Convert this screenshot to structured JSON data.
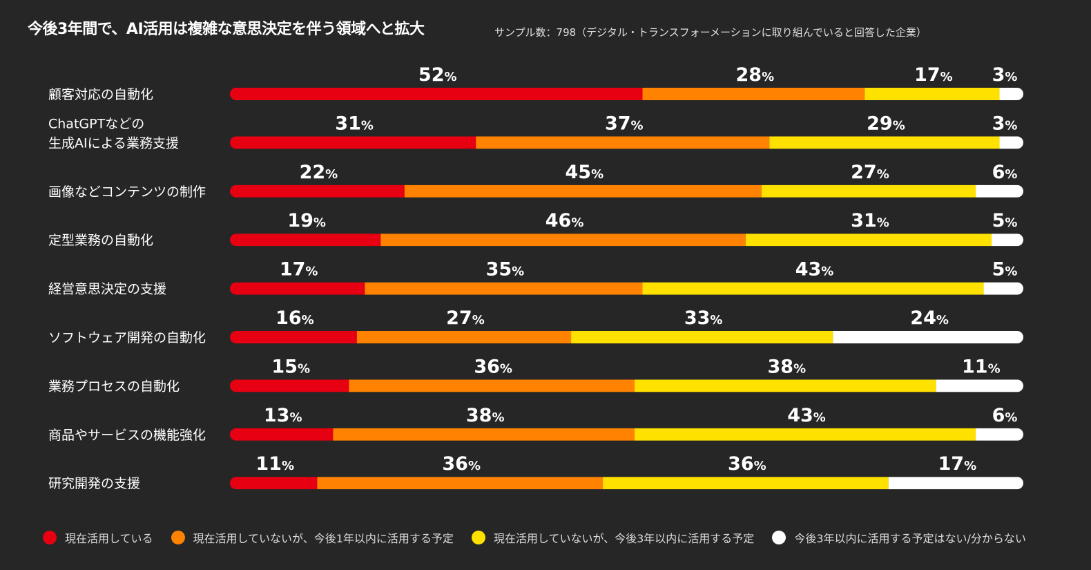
{
  "title": "今後3年間で、AI活用は複雑な意思決定を伴う領域へと拡大",
  "subtitle": "サンプル数：798（デジタル・トランスフォーメーションに取り組んでいると回答した企業）",
  "colors": [
    "#e60012",
    "#ff8200",
    "#ffe100",
    "#ffffff"
  ],
  "chart_data": {
    "type": "bar",
    "orientation": "horizontal",
    "stacked": true,
    "unit": "%",
    "categories": [
      "顧客対応の自動化",
      "ChatGPTなどの\n生成AIによる業務支援",
      "画像などコンテンツの制作",
      "定型業務の自動化",
      "経営意思決定の支援",
      "ソフトウェア開発の自動化",
      "業務プロセスの自動化",
      "商品やサービスの機能強化",
      "研究開発の支援"
    ],
    "series": [
      {
        "name": "現在活用している",
        "values": [
          52,
          31,
          22,
          19,
          17,
          16,
          15,
          13,
          11
        ]
      },
      {
        "name": "現在活用していないが、今後1年以内に活用する予定",
        "values": [
          28,
          37,
          45,
          46,
          35,
          27,
          36,
          38,
          36
        ]
      },
      {
        "name": "現在活用していないが、今後3年以内に活用する予定",
        "values": [
          17,
          29,
          27,
          31,
          43,
          33,
          38,
          43,
          36
        ]
      },
      {
        "name": "今後3年以内に活用する予定はない/分からない",
        "values": [
          3,
          3,
          6,
          5,
          5,
          24,
          11,
          6,
          17
        ]
      }
    ],
    "legend_position": "bottom"
  }
}
